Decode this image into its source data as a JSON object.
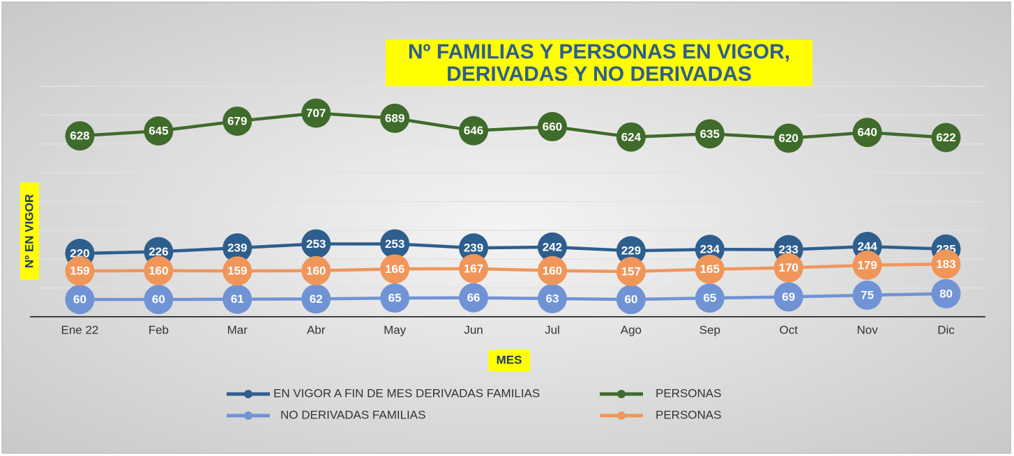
{
  "chart_data": {
    "type": "line",
    "title": "Nº FAMILIAS Y PERSONAS EN VIGOR, DERIVADAS Y NO DERIVADAS",
    "x_label": "MES",
    "y_label": "Nº EN VIGOR",
    "categories": [
      "Ene 22",
      "Feb",
      "Mar",
      "Abr",
      "May",
      "Jun",
      "Jul",
      "Ago",
      "Sep",
      "Oct",
      "Nov",
      "Dic"
    ],
    "series": [
      {
        "name": "EN VIGOR A FIN DE MES DERIVADAS FAMILIAS",
        "color": "#2e5e8e",
        "values": [
          220,
          226,
          239,
          253,
          253,
          239,
          242,
          229,
          234,
          233,
          244,
          235
        ]
      },
      {
        "name": "PERSONAS",
        "color": "#3f6b2b",
        "values": [
          628,
          645,
          679,
          707,
          689,
          646,
          660,
          624,
          635,
          620,
          640,
          622
        ]
      },
      {
        "name": "NO DERIVADAS FAMILIAS",
        "color": "#7093d6",
        "values": [
          60,
          60,
          61,
          62,
          65,
          66,
          63,
          60,
          65,
          69,
          75,
          80
        ]
      },
      {
        "name": "PERSONAS",
        "color": "#f0965a",
        "values": [
          159,
          160,
          159,
          160,
          166,
          167,
          160,
          157,
          165,
          170,
          179,
          183
        ]
      }
    ],
    "ylim": [
      0,
      800
    ],
    "yticks": [
      0,
      100,
      200,
      300,
      400,
      500,
      600,
      700,
      800
    ],
    "ytick_labels": false,
    "grid": true,
    "legend": "bottom"
  }
}
